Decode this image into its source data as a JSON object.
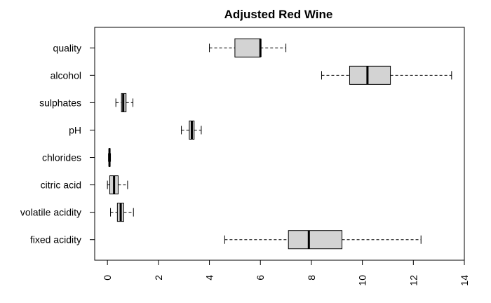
{
  "chart_data": {
    "type": "boxplot",
    "title": "Adjusted Red Wine",
    "orientation": "horizontal",
    "xlim": [
      -0.5,
      14
    ],
    "xticks": [
      0,
      2,
      4,
      6,
      8,
      10,
      12,
      14
    ],
    "grid": false,
    "colors": {
      "box_fill": "#d3d3d3",
      "stroke": "#000000"
    },
    "categories": [
      "fixed acidity",
      "volatile acidity",
      "citric acid",
      "chlorides",
      "pH",
      "sulphates",
      "alcohol",
      "quality"
    ],
    "boxes": [
      {
        "name": "fixed acidity",
        "whisker_low": 4.6,
        "q1": 7.1,
        "median": 7.9,
        "q3": 9.2,
        "whisker_high": 12.3
      },
      {
        "name": "volatile acidity",
        "whisker_low": 0.12,
        "q1": 0.39,
        "median": 0.52,
        "q3": 0.64,
        "whisker_high": 1.02
      },
      {
        "name": "citric acid",
        "whisker_low": 0.0,
        "q1": 0.09,
        "median": 0.26,
        "q3": 0.42,
        "whisker_high": 0.79
      },
      {
        "name": "chlorides",
        "whisker_low": 0.04,
        "q1": 0.07,
        "median": 0.08,
        "q3": 0.09,
        "whisker_high": 0.12
      },
      {
        "name": "pH",
        "whisker_low": 2.9,
        "q1": 3.21,
        "median": 3.31,
        "q3": 3.4,
        "whisker_high": 3.68
      },
      {
        "name": "sulphates",
        "whisker_low": 0.33,
        "q1": 0.55,
        "median": 0.62,
        "q3": 0.73,
        "whisker_high": 1.0
      },
      {
        "name": "alcohol",
        "whisker_low": 8.4,
        "q1": 9.5,
        "median": 10.2,
        "q3": 11.1,
        "whisker_high": 13.5
      },
      {
        "name": "quality",
        "whisker_low": 4,
        "q1": 5,
        "median": 6,
        "q3": 6,
        "whisker_high": 7
      }
    ]
  }
}
